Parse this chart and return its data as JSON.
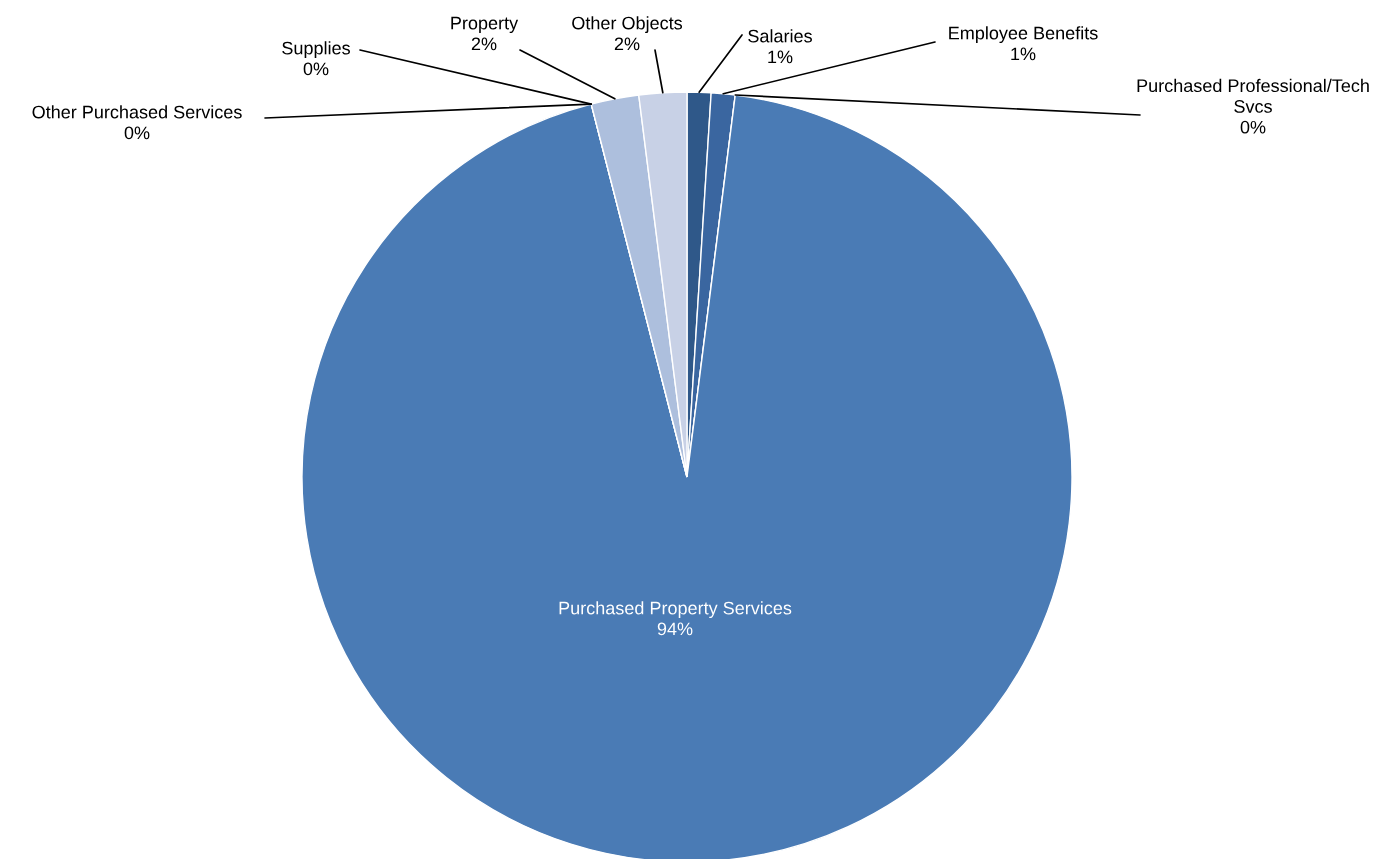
{
  "chart_data": {
    "type": "pie",
    "categories": [
      "Salaries",
      "Employee Benefits",
      "Purchased Professional/Tech Svcs",
      "Purchased Property Services",
      "Other Purchased Services",
      "Supplies",
      "Property",
      "Other Objects"
    ],
    "values": [
      1,
      1,
      0,
      94,
      0,
      0,
      2,
      2
    ],
    "value_labels": [
      "1%",
      "1%",
      "0%",
      "94%",
      "0%",
      "0%",
      "2%",
      "2%"
    ],
    "colors": [
      "#2f5889",
      "#3a66a0",
      "#4270aa",
      "#4a7bb5",
      "#7d9ccb",
      "#9cb1d6",
      "#adbfdd",
      "#c8d1e6"
    ],
    "legend": false
  }
}
